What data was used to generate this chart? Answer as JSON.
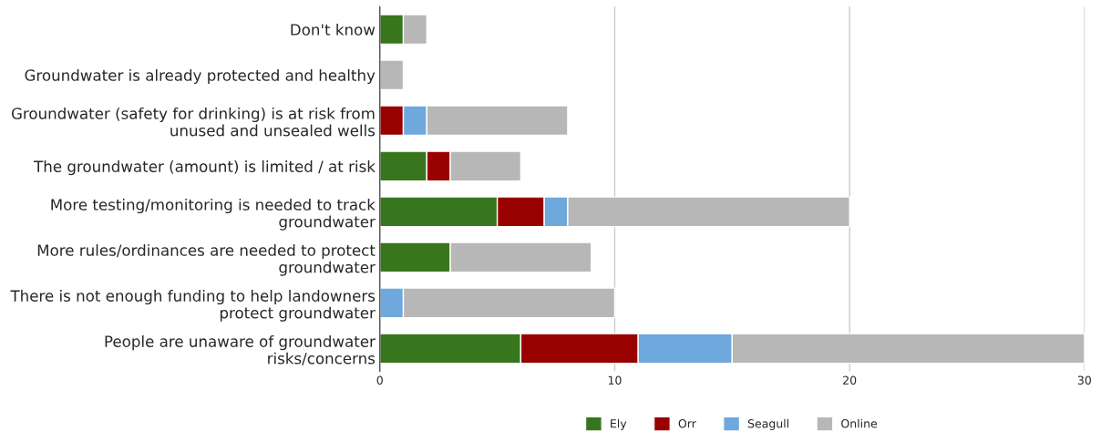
{
  "chart_data": {
    "type": "bar",
    "orientation": "horizontal",
    "stacked": true,
    "categories": [
      "Don't know",
      "Groundwater is already protected and healthy",
      "Groundwater (safety for drinking) is at risk from\nunused and unsealed wells",
      "The groundwater (amount) is limited / at risk",
      "More testing/monitoring is needed to track\ngroundwater",
      "More rules/ordinances are needed to protect\ngroundwater",
      "There is not enough funding to help landowners\nprotect groundwater",
      "People are unaware of groundwater\nrisks/concerns"
    ],
    "series": [
      {
        "name": "Ely",
        "color": "#38761d",
        "values": [
          1,
          null,
          null,
          2,
          5,
          3,
          null,
          6
        ]
      },
      {
        "name": "Orr",
        "color": "#990000",
        "values": [
          null,
          null,
          1,
          1,
          2,
          null,
          null,
          5
        ]
      },
      {
        "name": "Seagull",
        "color": "#6fa8dc",
        "values": [
          null,
          null,
          1,
          null,
          1,
          null,
          1,
          4
        ]
      },
      {
        "name": "Online",
        "color": "#b7b7b7",
        "values": [
          1,
          1,
          6,
          3,
          12,
          6,
          9,
          15
        ]
      }
    ],
    "xlim": [
      0,
      30
    ],
    "xticks": [
      0,
      10,
      20,
      30
    ],
    "grid": "x",
    "legend": "bottom"
  }
}
